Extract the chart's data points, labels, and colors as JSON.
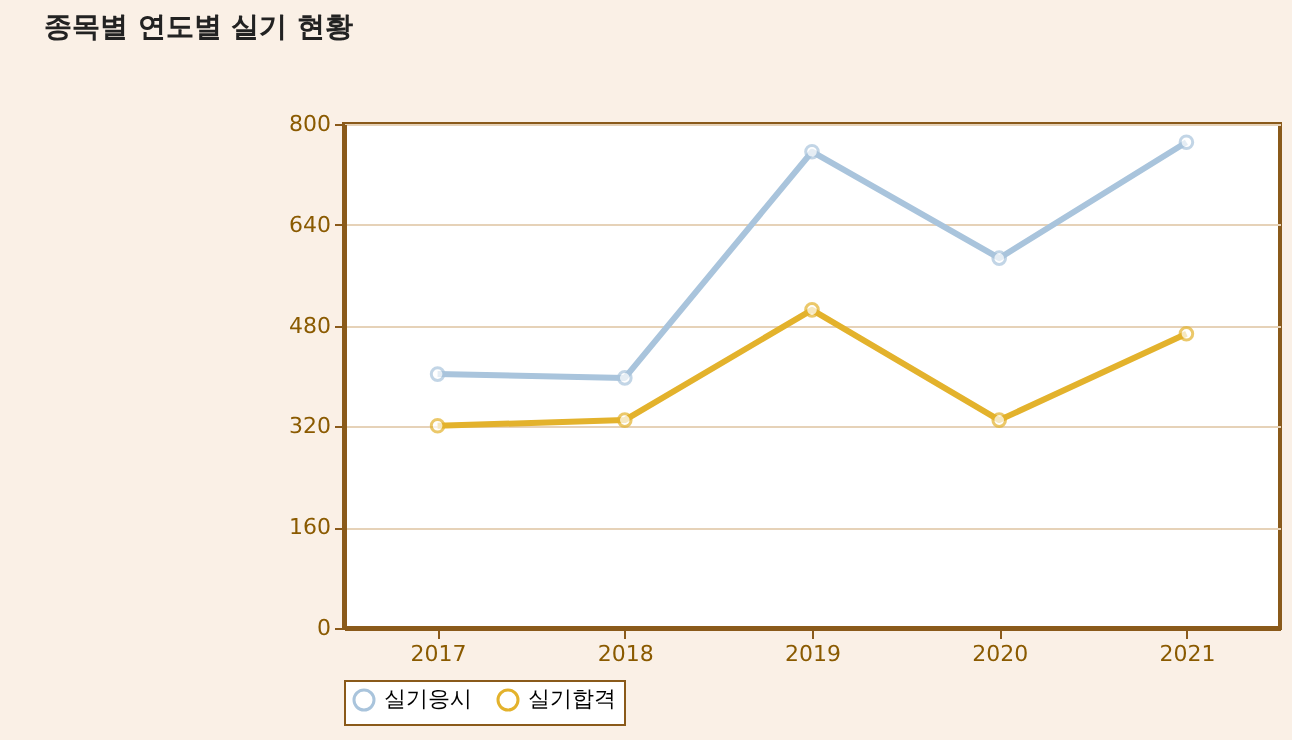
{
  "chart_data": {
    "type": "line",
    "title": "종목별 연도별 실기 현황",
    "categories": [
      "2017",
      "2018",
      "2019",
      "2020",
      "2021"
    ],
    "series": [
      {
        "name": "실기응시",
        "color": "#a9c4dc",
        "values": [
          403,
          397,
          756,
          587,
          771
        ]
      },
      {
        "name": "실기합격",
        "color": "#e3b22c",
        "values": [
          321,
          330,
          505,
          330,
          467
        ]
      }
    ],
    "ylim": [
      0,
      800
    ],
    "yticks": [
      0,
      160,
      320,
      480,
      640,
      800
    ],
    "grid": "y",
    "legend": "bottom",
    "marker": "circle",
    "line_style": "solid"
  }
}
